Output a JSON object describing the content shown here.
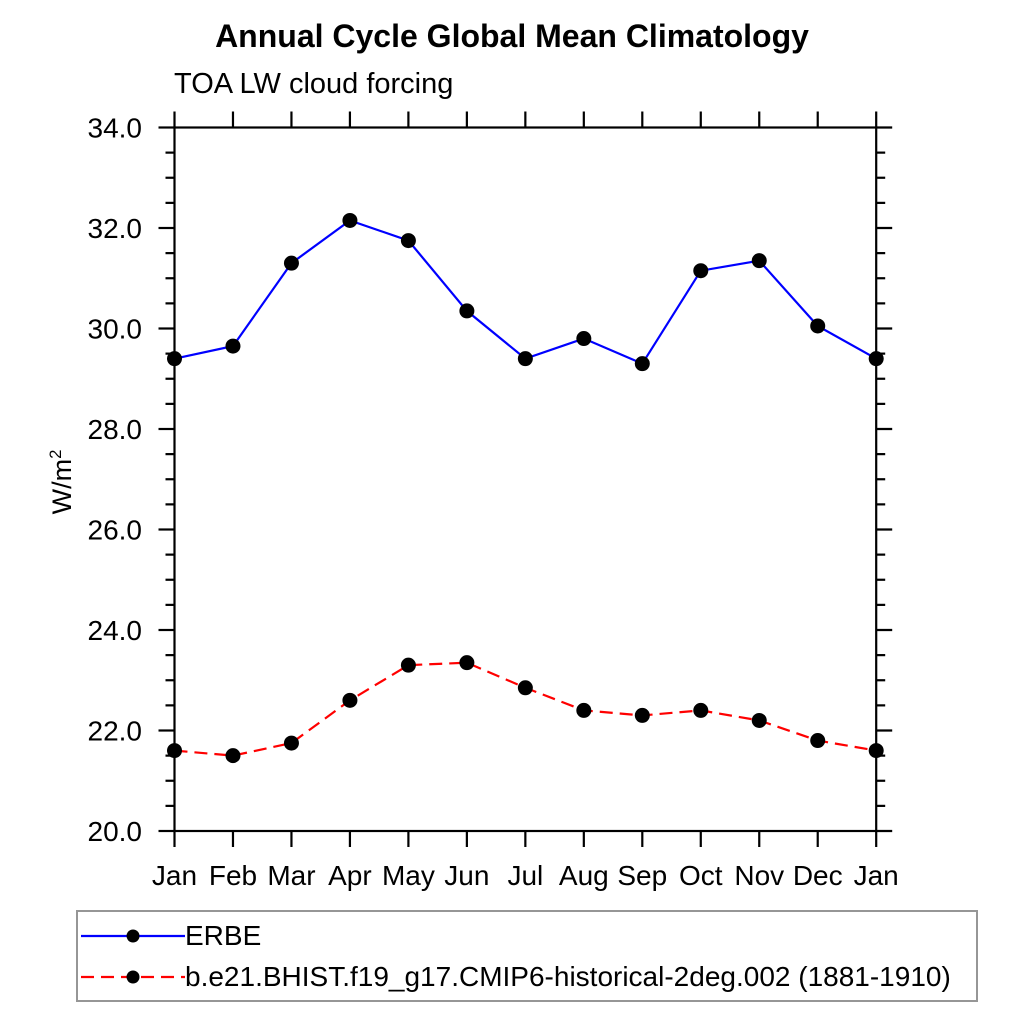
{
  "page": {
    "background": "#ffffff",
    "text_color": "#000000",
    "axis_color": "#000000",
    "legend_border_color": "#969696"
  },
  "chart_data": {
    "type": "line",
    "title": "Annual Cycle Global Mean Climatology",
    "subtitle": "TOA LW cloud forcing",
    "ylabel_base": "W/m",
    "ylabel_exponent": "2",
    "xlabel": "",
    "grid": false,
    "legend_position": "bottom-left",
    "x_tick_labels": [
      "Jan",
      "Feb",
      "Mar",
      "Apr",
      "May",
      "Jun",
      "Jul",
      "Aug",
      "Sep",
      "Oct",
      "Nov",
      "Dec",
      "Jan"
    ],
    "y_axis": {
      "min": 20.0,
      "max": 34.0,
      "major_step": 2.0,
      "minor_step": 0.5,
      "major_tick_labels": [
        "34.0",
        "32.0",
        "30.0",
        "28.0",
        "26.0",
        "24.0",
        "22.0",
        "20.0"
      ]
    },
    "series": [
      {
        "name": "ERBE",
        "color": "#0000ff",
        "line_style": "solid",
        "marker": "filled-circle",
        "marker_color": "#000000",
        "values": [
          29.4,
          29.65,
          31.3,
          32.15,
          31.75,
          30.35,
          29.4,
          29.8,
          29.3,
          31.15,
          31.35,
          30.05,
          29.4
        ]
      },
      {
        "name": "b.e21.BHIST.f19_g17.CMIP6-historical-2deg.002 (1881-1910)",
        "color": "#ff0000",
        "line_style": "dashed",
        "marker": "filled-circle",
        "marker_color": "#000000",
        "values": [
          21.6,
          21.5,
          21.75,
          22.6,
          23.3,
          23.35,
          22.85,
          22.4,
          22.3,
          22.4,
          22.2,
          21.8,
          21.6
        ]
      }
    ]
  }
}
